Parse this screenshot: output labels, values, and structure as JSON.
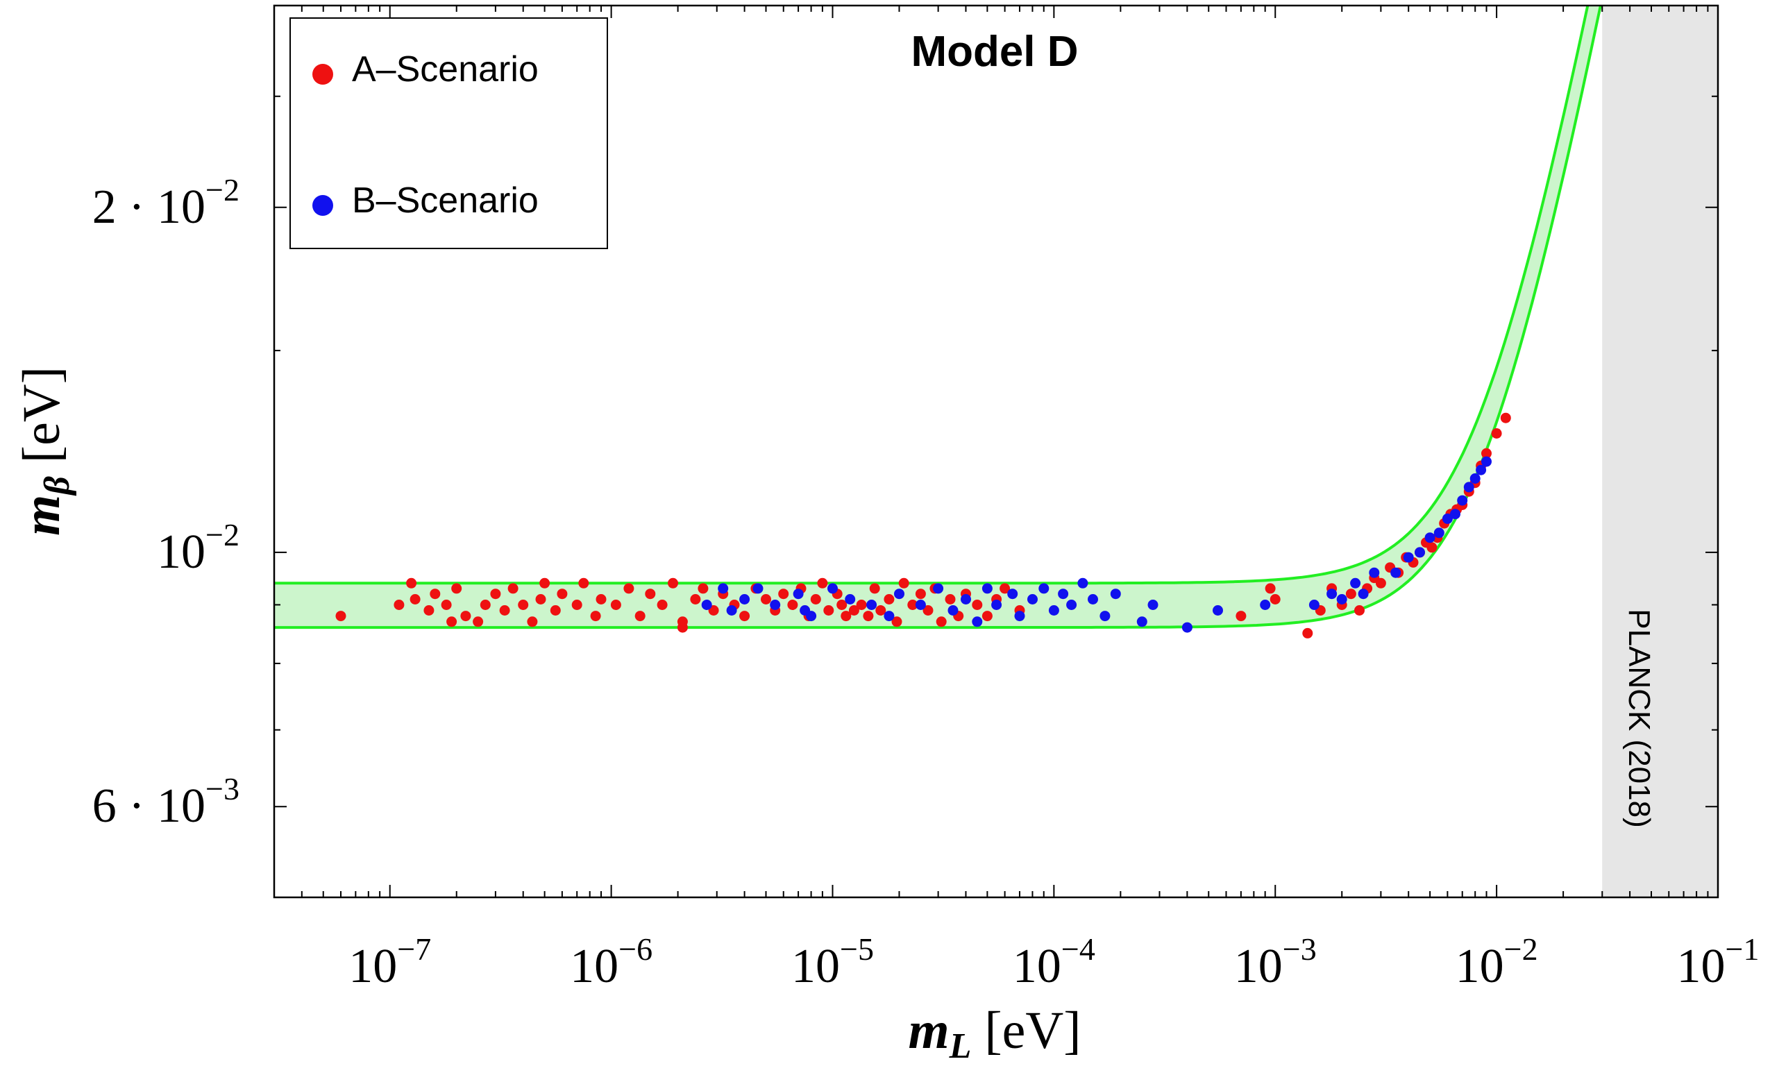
{
  "chart_data": {
    "type": "scatter",
    "title": "Model D",
    "xlabel": {
      "symbol": "m",
      "sub": "L",
      "unit": "[eV]"
    },
    "ylabel": {
      "symbol": "m",
      "sub": "β",
      "unit": "[eV]"
    },
    "xscale": "log",
    "yscale": "log",
    "xlim": [
      3e-08,
      0.1
    ],
    "ylim": [
      0.005,
      0.03
    ],
    "x_ticks": [
      {
        "value": 1e-07,
        "base": "10",
        "exp": "−7"
      },
      {
        "value": 1e-06,
        "base": "10",
        "exp": "−6"
      },
      {
        "value": 1e-05,
        "base": "10",
        "exp": "−5"
      },
      {
        "value": 0.0001,
        "base": "10",
        "exp": "−4"
      },
      {
        "value": 0.001,
        "base": "10",
        "exp": "−3"
      },
      {
        "value": 0.01,
        "base": "10",
        "exp": "−2"
      },
      {
        "value": 0.1,
        "base": "10",
        "exp": "−1"
      }
    ],
    "y_ticks": [
      {
        "value": 0.006,
        "prefix": "6 · ",
        "base": "10",
        "exp": "−3"
      },
      {
        "value": 0.01,
        "prefix": "",
        "base": "10",
        "exp": "−2"
      },
      {
        "value": 0.02,
        "prefix": "2 · ",
        "base": "10",
        "exp": "−2"
      }
    ],
    "legend": {
      "placement": "top-left",
      "entries": [
        {
          "label": "A–Scenario",
          "color": "#ee1111"
        },
        {
          "label": "B–Scenario",
          "color": "#1111ee"
        }
      ]
    },
    "band": {
      "color_fill": "#ccf5cc",
      "color_line": "#22ee22",
      "lower_plateau": 0.0086,
      "upper_plateau": 0.0094,
      "lower_offset": 0.0,
      "upper_offset": 0.0
    },
    "excluded_region": {
      "label": "PLANCK (2018)",
      "x_from": 0.03,
      "x_to": 0.1,
      "color": "#e6e6e6"
    },
    "series": [
      {
        "name": "A–Scenario",
        "color": "#ee1111",
        "points": [
          [
            6e-08,
            0.0088
          ],
          [
            1.1e-07,
            0.009
          ],
          [
            1.25e-07,
            0.0094
          ],
          [
            1.3e-07,
            0.0091
          ],
          [
            1.5e-07,
            0.0089
          ],
          [
            1.6e-07,
            0.0092
          ],
          [
            1.8e-07,
            0.009
          ],
          [
            1.9e-07,
            0.0087
          ],
          [
            2e-07,
            0.0093
          ],
          [
            2.2e-07,
            0.0088
          ],
          [
            2.5e-07,
            0.0087
          ],
          [
            2.7e-07,
            0.009
          ],
          [
            3e-07,
            0.0092
          ],
          [
            3.3e-07,
            0.0089
          ],
          [
            3.6e-07,
            0.0093
          ],
          [
            4e-07,
            0.009
          ],
          [
            4.4e-07,
            0.0087
          ],
          [
            4.8e-07,
            0.0091
          ],
          [
            5e-07,
            0.0094
          ],
          [
            5.6e-07,
            0.0089
          ],
          [
            6e-07,
            0.0092
          ],
          [
            7e-07,
            0.009
          ],
          [
            7.5e-07,
            0.0094
          ],
          [
            8.5e-07,
            0.0088
          ],
          [
            9e-07,
            0.0091
          ],
          [
            1.05e-06,
            0.009
          ],
          [
            1.2e-06,
            0.0093
          ],
          [
            1.35e-06,
            0.0088
          ],
          [
            1.5e-06,
            0.0092
          ],
          [
            1.7e-06,
            0.009
          ],
          [
            1.9e-06,
            0.0094
          ],
          [
            2.1e-06,
            0.0086
          ],
          [
            2.1e-06,
            0.0087
          ],
          [
            2.4e-06,
            0.0091
          ],
          [
            2.6e-06,
            0.0093
          ],
          [
            2.9e-06,
            0.0089
          ],
          [
            3.2e-06,
            0.0092
          ],
          [
            3.6e-06,
            0.009
          ],
          [
            4e-06,
            0.0088
          ],
          [
            4.5e-06,
            0.0093
          ],
          [
            5e-06,
            0.0091
          ],
          [
            5.5e-06,
            0.0089
          ],
          [
            6e-06,
            0.0092
          ],
          [
            6.6e-06,
            0.009
          ],
          [
            7.2e-06,
            0.0093
          ],
          [
            7.8e-06,
            0.0088
          ],
          [
            8.4e-06,
            0.0091
          ],
          [
            9e-06,
            0.0094
          ],
          [
            9.6e-06,
            0.0089
          ],
          [
            1.05e-05,
            0.0092
          ],
          [
            1.1e-05,
            0.009
          ],
          [
            1.15e-05,
            0.0088
          ],
          [
            1.25e-05,
            0.0089
          ],
          [
            1.35e-05,
            0.009
          ],
          [
            1.45e-05,
            0.0088
          ],
          [
            1.55e-05,
            0.0093
          ],
          [
            1.65e-05,
            0.0089
          ],
          [
            1.8e-05,
            0.0091
          ],
          [
            1.95e-05,
            0.0087
          ],
          [
            2.1e-05,
            0.0094
          ],
          [
            2.3e-05,
            0.009
          ],
          [
            2.5e-05,
            0.0092
          ],
          [
            2.7e-05,
            0.0089
          ],
          [
            2.9e-05,
            0.0093
          ],
          [
            3.1e-05,
            0.0087
          ],
          [
            3.4e-05,
            0.0091
          ],
          [
            3.7e-05,
            0.0088
          ],
          [
            4e-05,
            0.0092
          ],
          [
            4.5e-05,
            0.009
          ],
          [
            5e-05,
            0.0088
          ],
          [
            5.5e-05,
            0.0091
          ],
          [
            6e-05,
            0.0093
          ],
          [
            7e-05,
            0.0089
          ],
          [
            0.00095,
            0.0093
          ],
          [
            0.0007,
            0.0088
          ],
          [
            0.001,
            0.0091
          ],
          [
            0.0014,
            0.0085
          ],
          [
            0.0016,
            0.0089
          ],
          [
            0.0018,
            0.0093
          ],
          [
            0.002,
            0.009
          ],
          [
            0.0022,
            0.0092
          ],
          [
            0.0024,
            0.0089
          ],
          [
            0.0026,
            0.0093
          ],
          [
            0.0028,
            0.0095
          ],
          [
            0.003,
            0.0094
          ],
          [
            0.0033,
            0.0097
          ],
          [
            0.0036,
            0.0096
          ],
          [
            0.0039,
            0.0099
          ],
          [
            0.0042,
            0.0098
          ],
          [
            0.0045,
            0.01
          ],
          [
            0.0048,
            0.0102
          ],
          [
            0.0051,
            0.0101
          ],
          [
            0.0054,
            0.0103
          ],
          [
            0.0058,
            0.0106
          ],
          [
            0.0062,
            0.0108
          ],
          [
            0.0066,
            0.0109
          ],
          [
            0.007,
            0.011
          ],
          [
            0.0075,
            0.0113
          ],
          [
            0.008,
            0.0115
          ],
          [
            0.0085,
            0.0119
          ],
          [
            0.009,
            0.0122
          ],
          [
            0.01,
            0.0127
          ],
          [
            0.011,
            0.0131
          ]
        ]
      },
      {
        "name": "B–Scenario",
        "color": "#1111ee",
        "points": [
          [
            2.7e-06,
            0.009
          ],
          [
            3.2e-06,
            0.0093
          ],
          [
            3.5e-06,
            0.0089
          ],
          [
            4e-06,
            0.0091
          ],
          [
            4.6e-06,
            0.0093
          ],
          [
            5.5e-06,
            0.009
          ],
          [
            7e-06,
            0.0092
          ],
          [
            7.5e-06,
            0.0089
          ],
          [
            8e-06,
            0.0088
          ],
          [
            1e-05,
            0.0093
          ],
          [
            1.2e-05,
            0.0091
          ],
          [
            1.5e-05,
            0.009
          ],
          [
            1.8e-05,
            0.0088
          ],
          [
            2e-05,
            0.0092
          ],
          [
            2.5e-05,
            0.009
          ],
          [
            3e-05,
            0.0093
          ],
          [
            3.5e-05,
            0.0089
          ],
          [
            4e-05,
            0.0091
          ],
          [
            4.5e-05,
            0.0087
          ],
          [
            5e-05,
            0.0093
          ],
          [
            5.5e-05,
            0.009
          ],
          [
            6.5e-05,
            0.0092
          ],
          [
            7e-05,
            0.0088
          ],
          [
            8e-05,
            0.0091
          ],
          [
            9e-05,
            0.0093
          ],
          [
            0.0001,
            0.0089
          ],
          [
            0.00011,
            0.0092
          ],
          [
            0.00012,
            0.009
          ],
          [
            0.000135,
            0.0094
          ],
          [
            0.00015,
            0.0091
          ],
          [
            0.00017,
            0.0088
          ],
          [
            0.00019,
            0.0092
          ],
          [
            0.00025,
            0.0087
          ],
          [
            0.00028,
            0.009
          ],
          [
            0.0004,
            0.0086
          ],
          [
            0.00055,
            0.0089
          ],
          [
            0.0009,
            0.009
          ],
          [
            0.0015,
            0.009
          ],
          [
            0.0018,
            0.0092
          ],
          [
            0.002,
            0.0091
          ],
          [
            0.0023,
            0.0094
          ],
          [
            0.0025,
            0.0092
          ],
          [
            0.0028,
            0.0096
          ],
          [
            0.0035,
            0.0096
          ],
          [
            0.004,
            0.0099
          ],
          [
            0.0045,
            0.01
          ],
          [
            0.005,
            0.0103
          ],
          [
            0.0055,
            0.0104
          ],
          [
            0.006,
            0.0107
          ],
          [
            0.0065,
            0.0108
          ],
          [
            0.007,
            0.0111
          ],
          [
            0.0075,
            0.0114
          ],
          [
            0.008,
            0.0116
          ],
          [
            0.0085,
            0.0118
          ],
          [
            0.009,
            0.012
          ]
        ]
      }
    ]
  }
}
